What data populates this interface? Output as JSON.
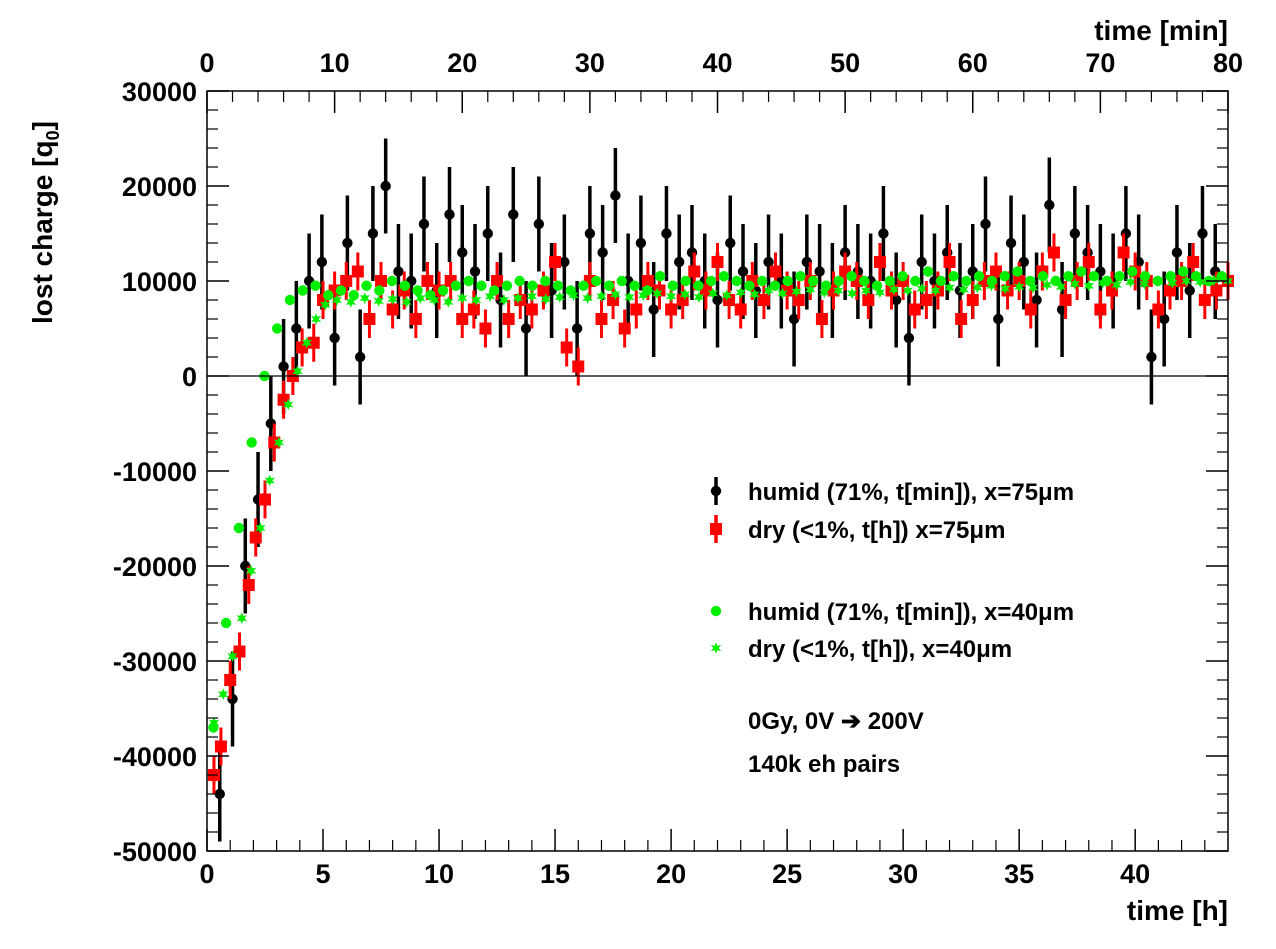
{
  "chart_data": {
    "type": "scatter",
    "xlabel": "time [h]",
    "x2label": "time [min]",
    "ylabel": "lost charge [q",
    "ylabel_sub": "0",
    "ylabel_suffix": "]",
    "xlim": [
      0,
      44
    ],
    "x2lim": [
      0,
      80
    ],
    "ylim": [
      -50000,
      30000
    ],
    "x_ticks": [
      "0",
      "5",
      "10",
      "15",
      "20",
      "25",
      "30",
      "35",
      "40"
    ],
    "x2_ticks": [
      "0",
      "10",
      "20",
      "30",
      "40",
      "50",
      "60",
      "70",
      "80"
    ],
    "y_ticks": [
      "-50000",
      "-40000",
      "-30000",
      "-20000",
      "-10000",
      "0",
      "10000",
      "20000",
      "30000"
    ],
    "annotations": [
      "0Gy, 0V ➔ 200V",
      "140k eh pairs"
    ],
    "series": [
      {
        "name": "humid (71%, t[min]), x=75μm",
        "color": "#000000",
        "marker": "circle",
        "x_axis": "min",
        "x": [
          1.0,
          2.0,
          3.0,
          4.0,
          5.0,
          6.0,
          7.0,
          8.0,
          9.0,
          10.0,
          11.0,
          12.0,
          13.0,
          14.0,
          15.0,
          16.0,
          17.0,
          18.0,
          19.0,
          20.0,
          21.0,
          22.0,
          23.0,
          24.0,
          25.0,
          26.0,
          27.0,
          28.0,
          29.0,
          30.0,
          31.0,
          32.0,
          33.0,
          34.0,
          35.0,
          36.0,
          37.0,
          38.0,
          39.0,
          40.0,
          41.0,
          42.0,
          43.0,
          44.0,
          45.0,
          46.0,
          47.0,
          48.0,
          49.0,
          50.0,
          51.0,
          52.0,
          53.0,
          54.0,
          55.0,
          56.0,
          57.0,
          58.0,
          59.0,
          60.0,
          61.0,
          62.0,
          63.0,
          64.0,
          65.0,
          66.0,
          67.0,
          68.0,
          69.0,
          70.0,
          71.0,
          72.0,
          73.0,
          74.0,
          75.0,
          76.0,
          77.0,
          78.0,
          79.0
        ],
        "y": [
          -44000,
          -34000,
          -20000,
          -13000,
          -5000,
          1000,
          5000,
          10000,
          12000,
          4000,
          14000,
          2000,
          15000,
          20000,
          11000,
          10000,
          16000,
          9000,
          17000,
          13000,
          11000,
          15000,
          8000,
          17000,
          5000,
          16000,
          9000,
          12000,
          5000,
          15000,
          13000,
          19000,
          10000,
          14000,
          7000,
          15000,
          12000,
          13000,
          10000,
          8000,
          14000,
          11000,
          9000,
          12000,
          10000,
          6000,
          12000,
          11000,
          9000,
          13000,
          11000,
          10000,
          15000,
          8000,
          4000,
          12000,
          10000,
          13000,
          9000,
          11000,
          16000,
          6000,
          14000,
          12000,
          8000,
          18000,
          7000,
          15000,
          13000,
          11000,
          10000,
          15000,
          12000,
          2000,
          6000,
          13000,
          9000,
          15000,
          11000
        ],
        "err": [
          5000,
          5000,
          5000,
          5000,
          5000,
          5000,
          5000,
          5000,
          5000,
          5000,
          5000,
          5000,
          5000,
          5000,
          5000,
          5000,
          5000,
          5000,
          5000,
          5000,
          5000,
          5000,
          5000,
          5000,
          5000,
          5000,
          5000,
          5000,
          5000,
          5000,
          5000,
          5000,
          5000,
          5000,
          5000,
          5000,
          5000,
          5000,
          5000,
          5000,
          5000,
          5000,
          5000,
          5000,
          5000,
          5000,
          5000,
          5000,
          5000,
          5000,
          5000,
          5000,
          5000,
          5000,
          5000,
          5000,
          5000,
          5000,
          5000,
          5000,
          5000,
          5000,
          5000,
          5000,
          5000,
          5000,
          5000,
          5000,
          5000,
          5000,
          5000,
          5000,
          5000,
          5000,
          5000,
          5000,
          5000,
          5000,
          5000
        ]
      },
      {
        "name": "dry (<1%, t[h]) x=75μm",
        "color": "#ff0000",
        "marker": "square",
        "x_axis": "h",
        "x": [
          0.3,
          0.6,
          1.0,
          1.4,
          1.8,
          2.1,
          2.5,
          2.9,
          3.3,
          3.7,
          4.1,
          4.6,
          5.0,
          5.5,
          6.0,
          6.5,
          7.0,
          7.5,
          8.0,
          8.5,
          9.0,
          9.5,
          10.0,
          10.5,
          11.0,
          11.5,
          12.0,
          12.5,
          13.0,
          13.5,
          14.0,
          14.5,
          15.0,
          15.5,
          16.0,
          16.5,
          17.0,
          17.5,
          18.0,
          18.5,
          19.0,
          19.5,
          20.0,
          20.5,
          21.0,
          21.5,
          22.0,
          22.5,
          23.0,
          23.5,
          24.0,
          24.5,
          25.0,
          25.5,
          26.0,
          26.5,
          27.0,
          27.5,
          28.0,
          28.5,
          29.0,
          29.5,
          30.0,
          30.5,
          31.0,
          31.5,
          32.0,
          32.5,
          33.0,
          33.5,
          34.0,
          34.5,
          35.0,
          35.5,
          36.0,
          36.5,
          37.0,
          37.5,
          38.0,
          38.5,
          39.0,
          39.5,
          40.0,
          40.5,
          41.0,
          41.5,
          42.0,
          42.5,
          43.0,
          43.5,
          44.0
        ],
        "y": [
          -42000,
          -39000,
          -32000,
          -29000,
          -22000,
          -17000,
          -13000,
          -7000,
          -2500,
          0,
          3000,
          3500,
          8000,
          9000,
          10000,
          11000,
          6000,
          10000,
          7000,
          9000,
          6000,
          10000,
          9000,
          10000,
          6000,
          7000,
          5000,
          10000,
          6000,
          8000,
          7000,
          9000,
          12000,
          3000,
          1000,
          10000,
          6000,
          8000,
          5000,
          7000,
          10000,
          9000,
          7000,
          8000,
          11000,
          9000,
          12000,
          8000,
          7000,
          10000,
          8000,
          11000,
          9000,
          8000,
          10000,
          6000,
          9000,
          11000,
          10000,
          8000,
          12000,
          9000,
          10000,
          7000,
          8000,
          9000,
          12000,
          6000,
          8000,
          10000,
          11000,
          9000,
          10000,
          7000,
          11000,
          13000,
          8000,
          10000,
          12000,
          7000,
          9000,
          13000,
          11000,
          10000,
          7000,
          9000,
          10000,
          12000,
          8000,
          9000,
          10000
        ],
        "err": [
          2000,
          2000,
          2000,
          2000,
          2000,
          2000,
          2000,
          2000,
          2000,
          2000,
          2000,
          2000,
          2000,
          2000,
          2000,
          2000,
          2000,
          2000,
          2000,
          2000,
          2000,
          2000,
          2000,
          2000,
          2000,
          2000,
          2000,
          2000,
          2000,
          2000,
          2000,
          2000,
          2000,
          2000,
          2000,
          2000,
          2000,
          2000,
          2000,
          2000,
          2000,
          2000,
          2000,
          2000,
          2000,
          2000,
          2000,
          2000,
          2000,
          2000,
          2000,
          2000,
          2000,
          2000,
          2000,
          2000,
          2000,
          2000,
          2000,
          2000,
          2000,
          2000,
          2000,
          2000,
          2000,
          2000,
          2000,
          2000,
          2000,
          2000,
          2000,
          2000,
          2000,
          2000,
          2000,
          2000,
          2000,
          2000,
          2000,
          2000,
          2000,
          2000,
          2000,
          2000,
          2000,
          2000,
          2000,
          2000,
          2000,
          2000,
          2000
        ]
      },
      {
        "name": "humid (71%, t[min]), x=40μm",
        "color": "#00ee00",
        "marker": "circle",
        "x_axis": "min",
        "x": [
          0.5,
          1.5,
          2.5,
          3.5,
          4.5,
          5.5,
          6.5,
          7.5,
          8.5,
          9.5,
          10.5,
          11.5,
          12.5,
          13.5,
          14.5,
          15.5,
          16.5,
          17.5,
          18.5,
          19.5,
          20.5,
          21.5,
          22.5,
          23.5,
          24.5,
          25.5,
          26.5,
          27.5,
          28.5,
          29.5,
          30.5,
          31.5,
          32.5,
          33.5,
          34.5,
          35.5,
          36.5,
          37.5,
          38.5,
          39.5,
          40.5,
          41.5,
          42.5,
          43.5,
          44.5,
          45.5,
          46.5,
          47.5,
          48.5,
          49.5,
          50.5,
          51.5,
          52.5,
          53.5,
          54.5,
          55.5,
          56.5,
          57.5,
          58.5,
          59.5,
          60.5,
          61.5,
          62.5,
          63.5,
          64.5,
          65.5,
          66.5,
          67.5,
          68.5,
          69.5,
          70.5,
          71.5,
          72.5,
          73.5,
          74.5,
          75.5,
          76.5,
          77.5,
          78.5,
          79.5
        ],
        "y": [
          -37000,
          -26000,
          -16000,
          -7000,
          0,
          5000,
          8000,
          9000,
          9500,
          8500,
          9000,
          8500,
          9500,
          9000,
          10000,
          9500,
          9000,
          8500,
          9000,
          9500,
          10000,
          9500,
          9000,
          9500,
          10000,
          9500,
          10000,
          9500,
          9000,
          9500,
          10000,
          9500,
          10000,
          9500,
          9000,
          10500,
          9500,
          10000,
          9500,
          10000,
          10500,
          10000,
          9500,
          10000,
          9500,
          10000,
          10500,
          10000,
          9500,
          10000,
          10500,
          10000,
          9500,
          10000,
          10500,
          10000,
          11000,
          10000,
          10500,
          10000,
          10500,
          10000,
          10500,
          11000,
          10000,
          10500,
          10000,
          10500,
          11000,
          10500,
          10000,
          10500,
          11000,
          10500,
          10000,
          10500,
          11000,
          10500,
          10000,
          10500
        ],
        "err": [
          400,
          400,
          400,
          400,
          400,
          400,
          400,
          400,
          400,
          400,
          400,
          400,
          400,
          400,
          400,
          400,
          400,
          400,
          400,
          400,
          400,
          400,
          400,
          400,
          400,
          400,
          400,
          400,
          400,
          400,
          400,
          400,
          400,
          400,
          400,
          400,
          400,
          400,
          400,
          400,
          400,
          400,
          400,
          400,
          400,
          400,
          400,
          400,
          400,
          400,
          400,
          400,
          400,
          400,
          400,
          400,
          400,
          400,
          400,
          400,
          400,
          400,
          400,
          400,
          400,
          400,
          400,
          400,
          400,
          400,
          400,
          400,
          400,
          400,
          400,
          400,
          400,
          400,
          400,
          400
        ]
      },
      {
        "name": "dry (<1%, t[h]), x=40μm",
        "color": "#00ee00",
        "marker": "star",
        "x_axis": "h",
        "x": [
          0.3,
          0.7,
          1.1,
          1.5,
          1.9,
          2.3,
          2.7,
          3.1,
          3.5,
          3.9,
          4.3,
          4.7,
          5.1,
          5.6,
          6.2,
          6.8,
          7.4,
          8.0,
          8.6,
          9.2,
          9.8,
          10.4,
          11.0,
          11.6,
          12.2,
          12.8,
          13.4,
          14.0,
          14.6,
          15.2,
          15.8,
          16.4,
          17.0,
          17.6,
          18.2,
          18.8,
          19.4,
          20.0,
          20.6,
          21.2,
          21.8,
          22.4,
          23.0,
          23.6,
          24.2,
          24.8,
          25.4,
          26.0,
          26.6,
          27.2,
          27.8,
          28.4,
          29.0,
          29.6,
          30.2,
          30.8,
          31.4,
          32.0,
          32.6,
          33.2,
          33.8,
          34.4,
          35.0,
          35.6,
          36.2,
          36.8,
          37.4,
          38.0,
          38.6,
          39.2,
          39.8,
          40.4,
          41.0,
          41.6,
          42.2,
          42.8,
          43.4,
          44.0
        ],
        "y": [
          -36500,
          -33500,
          -29500,
          -25500,
          -20500,
          -16000,
          -11000,
          -7000,
          -3000,
          500,
          3500,
          6000,
          7500,
          8000,
          7800,
          8200,
          7900,
          8100,
          7800,
          8200,
          8000,
          7800,
          8200,
          8000,
          8400,
          8000,
          8200,
          8400,
          8100,
          8300,
          8500,
          8200,
          8400,
          8600,
          8300,
          8500,
          8700,
          8400,
          8600,
          8300,
          8700,
          8500,
          8800,
          8600,
          9000,
          8700,
          8900,
          9100,
          8800,
          9000,
          8700,
          9000,
          8800,
          9100,
          9000,
          9200,
          9000,
          9300,
          9100,
          9300,
          9500,
          9200,
          9400,
          9300,
          9600,
          9400,
          9700,
          9500,
          9800,
          9600,
          9900,
          9700,
          10000,
          9800,
          10000,
          9900,
          10100,
          10000
        ],
        "err": [
          300,
          300,
          300,
          300,
          300,
          300,
          300,
          300,
          300,
          300,
          300,
          300,
          300,
          300,
          300,
          300,
          300,
          300,
          300,
          300,
          300,
          300,
          300,
          300,
          300,
          300,
          300,
          300,
          300,
          300,
          300,
          300,
          300,
          300,
          300,
          300,
          300,
          300,
          300,
          300,
          300,
          300,
          300,
          300,
          300,
          300,
          300,
          300,
          300,
          300,
          300,
          300,
          300,
          300,
          300,
          300,
          300,
          300,
          300,
          300,
          300,
          300,
          300,
          300,
          300,
          300,
          300,
          300,
          300,
          300,
          300,
          300,
          300,
          300,
          300,
          300,
          300,
          300
        ]
      }
    ]
  }
}
